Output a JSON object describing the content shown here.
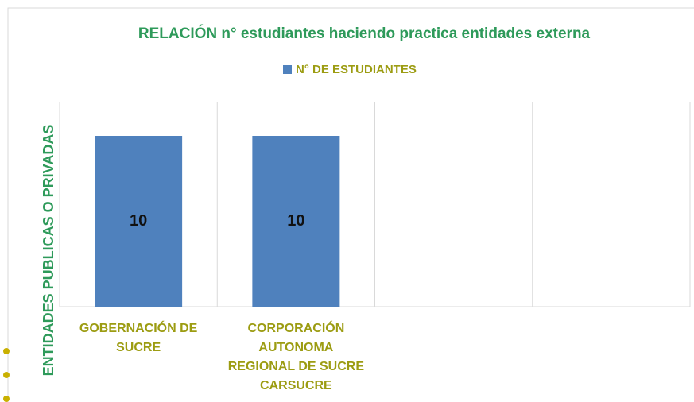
{
  "chart_data": {
    "type": "bar",
    "title": "RELACIÓN n° estudiantes haciendo practica entidades externa",
    "y_label": "ENTIDADES PUBLICAS O PRIVADAS",
    "categories": [
      "GOBERNACIÓN DE SUCRE",
      "CORPORACIÓN AUTONOMA REGIONAL DE SUCRE CARSUCRE",
      null,
      null
    ],
    "series": [
      {
        "name": "N° DE ESTUDIANTES",
        "color": "#4f81bd",
        "values": [
          10,
          10,
          null,
          null
        ]
      }
    ],
    "ylim": [
      0,
      12
    ],
    "grid": true,
    "legend": "top"
  }
}
